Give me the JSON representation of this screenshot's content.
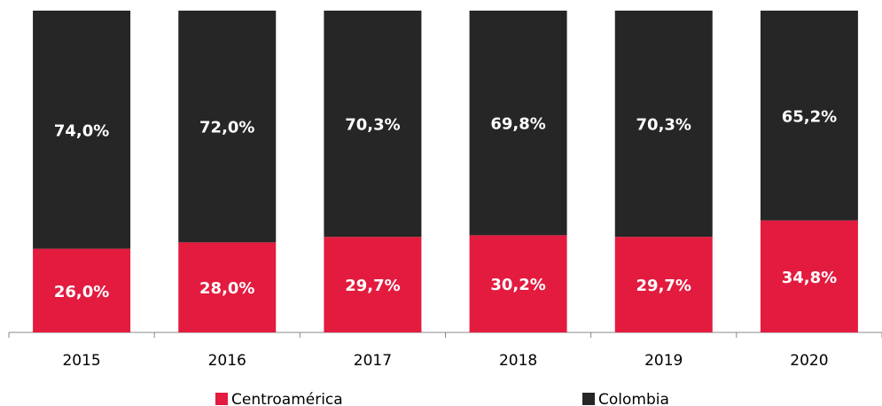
{
  "chart_data": {
    "type": "stacked_bar",
    "categories": [
      "2015",
      "2016",
      "2017",
      "2018",
      "2019",
      "2020"
    ],
    "series": [
      {
        "name": "Centroamérica",
        "color": "#e31b3f",
        "values": [
          26.0,
          28.0,
          29.7,
          30.2,
          29.7,
          34.8
        ],
        "value_labels": [
          "26,0%",
          "28,0%",
          "29,7%",
          "30,2%",
          "29,7%",
          "34,8%"
        ]
      },
      {
        "name": "Colombia",
        "color": "#262626",
        "values": [
          74.0,
          72.0,
          70.3,
          69.8,
          70.3,
          65.2
        ],
        "value_labels": [
          "74,0%",
          "72,0%",
          "70,3%",
          "69,8%",
          "70,3%",
          "65,2%"
        ]
      }
    ],
    "ylim": [
      0,
      100
    ]
  }
}
